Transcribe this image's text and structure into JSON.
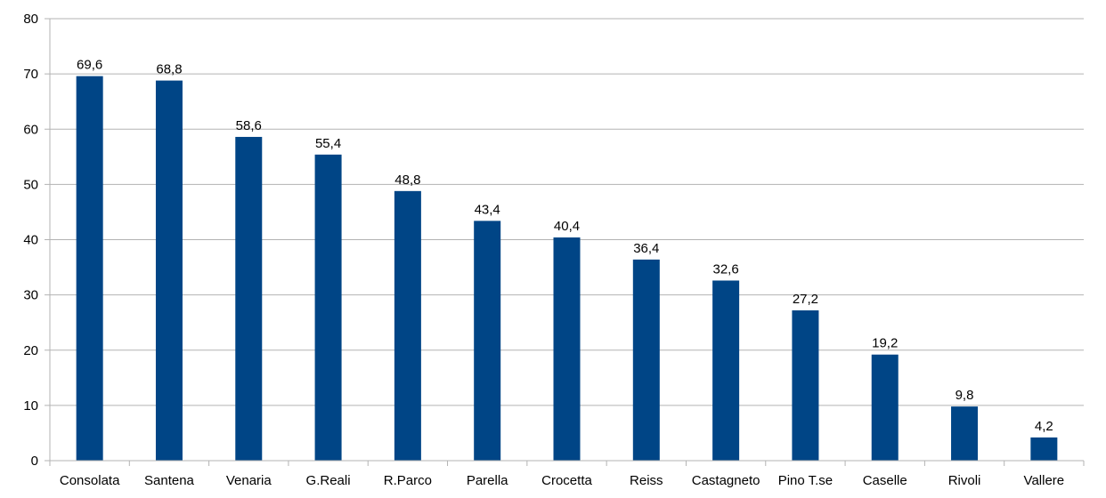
{
  "chart_data": {
    "type": "bar",
    "categories": [
      "Consolata",
      "Santena",
      "Venaria",
      "G.Reali",
      "R.Parco",
      "Parella",
      "Crocetta",
      "Reiss",
      "Castagneto",
      "Pino T.se",
      "Caselle",
      "Rivoli",
      "Vallere"
    ],
    "values": [
      69.6,
      68.8,
      58.6,
      55.4,
      48.8,
      43.4,
      40.4,
      36.4,
      32.6,
      27.2,
      19.2,
      9.8,
      4.2
    ],
    "value_labels": [
      "69,6",
      "68,8",
      "58,6",
      "55,4",
      "48,8",
      "43,4",
      "40,4",
      "36,4",
      "32,6",
      "27,2",
      "19,2",
      "9,8",
      "4,2"
    ],
    "title": "",
    "xlabel": "",
    "ylabel": "",
    "ylim": [
      0,
      80
    ],
    "yticks": [
      0,
      10,
      20,
      30,
      40,
      50,
      60,
      70,
      80
    ],
    "grid": true,
    "legend": "none",
    "bar_color": "#004586"
  }
}
